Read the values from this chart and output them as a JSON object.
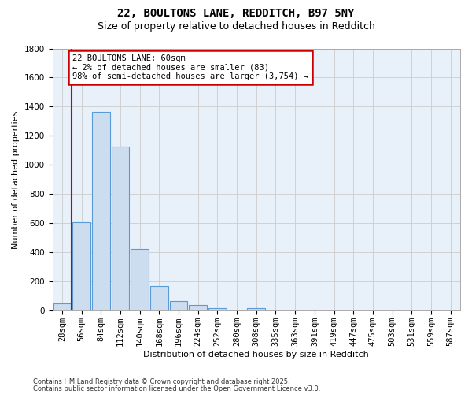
{
  "title1": "22, BOULTONS LANE, REDDITCH, B97 5NY",
  "title2": "Size of property relative to detached houses in Redditch",
  "xlabel": "Distribution of detached houses by size in Redditch",
  "ylabel": "Number of detached properties",
  "footnote1": "Contains HM Land Registry data © Crown copyright and database right 2025.",
  "footnote2": "Contains public sector information licensed under the Open Government Licence v3.0.",
  "bin_labels": [
    "28sqm",
    "56sqm",
    "84sqm",
    "112sqm",
    "140sqm",
    "168sqm",
    "196sqm",
    "224sqm",
    "252sqm",
    "280sqm",
    "308sqm",
    "335sqm",
    "363sqm",
    "391sqm",
    "419sqm",
    "447sqm",
    "475sqm",
    "503sqm",
    "531sqm",
    "559sqm",
    "587sqm"
  ],
  "bar_values": [
    50,
    610,
    1365,
    1125,
    425,
    170,
    65,
    40,
    20,
    0,
    20,
    0,
    0,
    0,
    0,
    0,
    0,
    0,
    0,
    0,
    0
  ],
  "bar_color": "#cdddf0",
  "bar_edge_color": "#5b9bd5",
  "annotation_line1": "22 BOULTONS LANE: 60sqm",
  "annotation_line2": "← 2% of detached houses are smaller (83)",
  "annotation_line3": "98% of semi-detached houses are larger (3,754) →",
  "annotation_box_color": "#ffffff",
  "annotation_box_edge": "#cc0000",
  "red_line_color": "#cc0000",
  "ylim": [
    0,
    1800
  ],
  "yticks": [
    0,
    200,
    400,
    600,
    800,
    1000,
    1200,
    1400,
    1600,
    1800
  ],
  "grid_color": "#cccccc",
  "bg_color": "#e8f0fa",
  "title1_fontsize": 10,
  "title2_fontsize": 9,
  "axis_label_fontsize": 8,
  "tick_fontsize": 7.5,
  "annotation_fontsize": 7.5,
  "footnote_fontsize": 6
}
